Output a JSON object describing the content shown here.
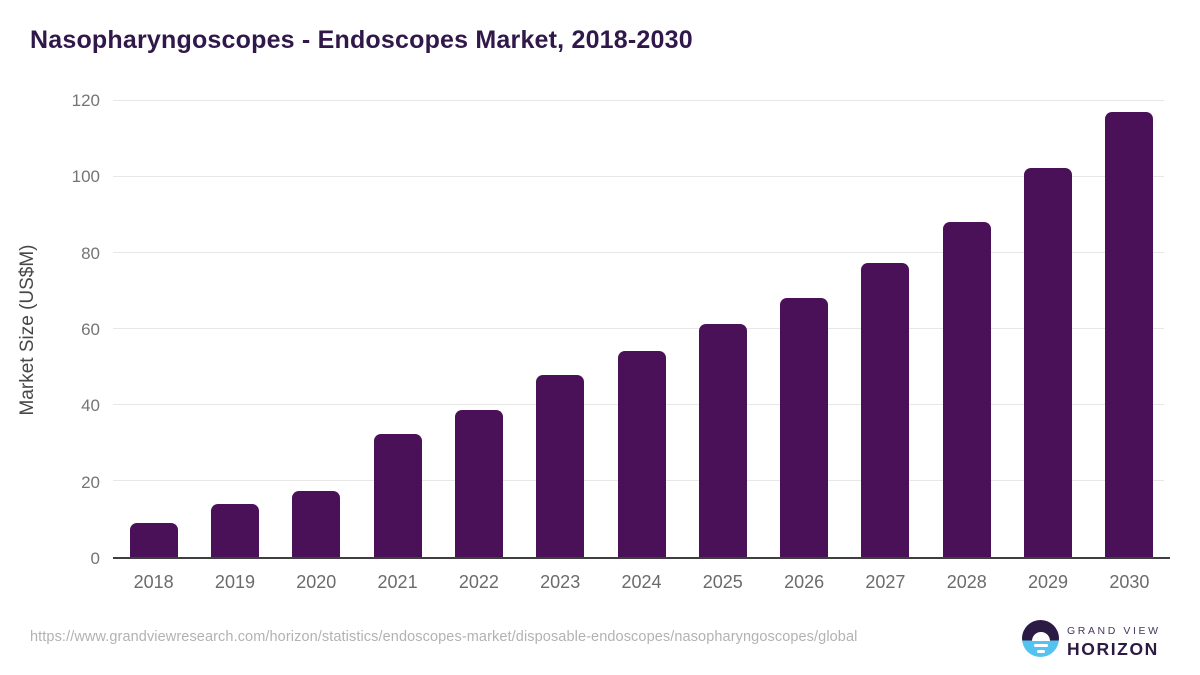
{
  "title": "Nasopharyngoscopes - Endoscopes Market, 2018-2030",
  "chart_data": {
    "type": "bar",
    "categories": [
      "2018",
      "2019",
      "2020",
      "2021",
      "2022",
      "2023",
      "2024",
      "2025",
      "2026",
      "2027",
      "2028",
      "2029",
      "2030"
    ],
    "values": [
      9,
      14,
      17.5,
      32.5,
      38.7,
      48,
      54.2,
      61.2,
      68.2,
      77.4,
      88.2,
      102.4,
      117.2
    ],
    "title": "Nasopharyngoscopes - Endoscopes Market, 2018-2030",
    "xlabel": "",
    "ylabel": "Market Size (US$M)",
    "ylim": [
      0,
      120
    ],
    "ytick_step": 20,
    "yticks": [
      0,
      20,
      40,
      60,
      80,
      100,
      120
    ],
    "grid": true,
    "legend": "none",
    "bar_color": "#4a1158"
  },
  "footer": {
    "source_url": "https://www.grandviewresearch.com/horizon/statistics/endoscopes-market/disposable-endoscopes/nasopharyngoscopes/global",
    "logo": {
      "line1": "GRAND VIEW",
      "line2": "HORIZON",
      "icon": "horizon-sunrise-circle",
      "color_top": "#2b1b44",
      "color_bottom": "#55c3f0"
    }
  },
  "colors": {
    "background": "#ffffff",
    "title": "#31184a",
    "bar": "#4a1158",
    "gridline": "#e7e7e7",
    "axis_line": "#3f3f3f",
    "tick_label": "#757575",
    "x_label": "#6b6b6b",
    "y_axis_label": "#474747",
    "source_url": "#b2b2b2"
  }
}
